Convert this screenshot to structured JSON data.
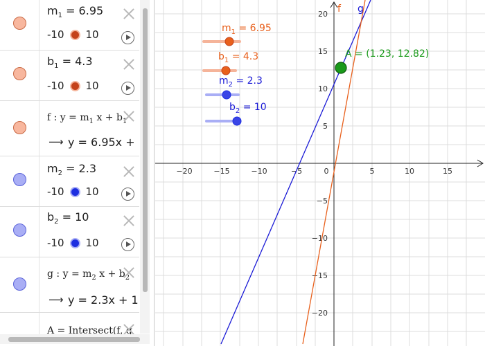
{
  "algebra": {
    "m1": {
      "label": "m",
      "sub": "1",
      "value": "= 6.95",
      "min": "-10",
      "max": "10"
    },
    "b1": {
      "label": "b",
      "sub": "1",
      "value": "= 4.3",
      "min": "-10",
      "max": "10"
    },
    "f": {
      "def": "f : y = m",
      "def_sub": "1",
      "def_mid": " x + b",
      "def_sub2": "1",
      "arrow": "⟶",
      "result": "y = 6.95x +"
    },
    "m2": {
      "label": "m",
      "sub": "2",
      "value": "= 2.3",
      "min": "-10",
      "max": "10"
    },
    "b2": {
      "label": "b",
      "sub": "2",
      "value": "= 10",
      "min": "-10",
      "max": "10"
    },
    "g": {
      "def": "g : y = m",
      "def_sub": "2",
      "def_mid": " x + b",
      "def_sub2": "2",
      "arrow": "⟶",
      "result": "y = 2.3x + 1"
    },
    "A": {
      "def": "A = Intersect(f, g"
    }
  },
  "graphics": {
    "x_ticks": [
      "−20",
      "−15",
      "−10",
      "−5",
      "0",
      "5",
      "10",
      "15"
    ],
    "y_ticks": [
      "20",
      "15",
      "10",
      "5",
      "−5",
      "−10",
      "−15",
      "−20"
    ],
    "slider_labels": {
      "m1": {
        "name": "m",
        "sub": "1",
        "value": " = 6.95"
      },
      "b1": {
        "name": "b",
        "sub": "1",
        "value": " = 4.3"
      },
      "m2": {
        "name": "m",
        "sub": "2",
        "value": " = 2.3"
      },
      "b2": {
        "name": "b",
        "sub": "2",
        "value": " = 10"
      }
    },
    "line_labels": {
      "f": "f",
      "g": "g"
    },
    "point_label": "A = (1.23, 12.82)",
    "colors": {
      "orange": "#e8601c",
      "blue": "#1a1ad6",
      "green": "#1a9a1a",
      "grid": "#dcdcdc",
      "axis": "#222222"
    }
  }
}
